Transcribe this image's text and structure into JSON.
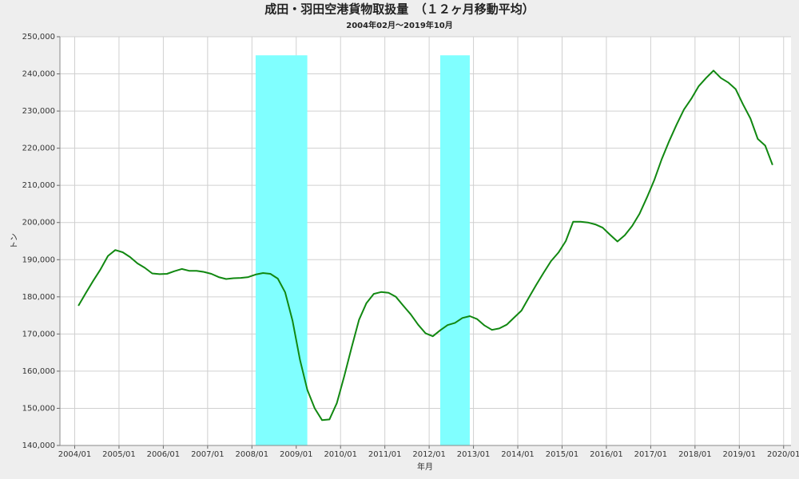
{
  "chart_data": {
    "type": "line",
    "title": "成田・羽田空港貨物取扱量　（１２ヶ月移動平均）",
    "subtitle": "2004年02月～2019年10月",
    "x_label": "年月",
    "y_label": "トン",
    "x": [
      "2004/02",
      "2004/04",
      "2004/06",
      "2004/08",
      "2004/10",
      "2004/12",
      "2005/02",
      "2005/04",
      "2005/06",
      "2005/08",
      "2005/10",
      "2005/12",
      "2006/02",
      "2006/04",
      "2006/06",
      "2006/08",
      "2006/10",
      "2006/12",
      "2007/02",
      "2007/04",
      "2007/06",
      "2007/08",
      "2007/10",
      "2007/12",
      "2008/02",
      "2008/04",
      "2008/06",
      "2008/08",
      "2008/10",
      "2008/12",
      "2009/02",
      "2009/04",
      "2009/06",
      "2009/08",
      "2009/10",
      "2009/12",
      "2010/02",
      "2010/04",
      "2010/06",
      "2010/08",
      "2010/10",
      "2010/12",
      "2011/02",
      "2011/04",
      "2011/06",
      "2011/08",
      "2011/10",
      "2011/12",
      "2012/02",
      "2012/04",
      "2012/06",
      "2012/08",
      "2012/10",
      "2012/12",
      "2013/02",
      "2013/04",
      "2013/06",
      "2013/08",
      "2013/10",
      "2013/12",
      "2014/02",
      "2014/04",
      "2014/06",
      "2014/08",
      "2014/10",
      "2014/12",
      "2015/02",
      "2015/04",
      "2015/06",
      "2015/08",
      "2015/10",
      "2015/12",
      "2016/02",
      "2016/04",
      "2016/06",
      "2016/08",
      "2016/10",
      "2016/12",
      "2017/02",
      "2017/04",
      "2017/06",
      "2017/08",
      "2017/10",
      "2017/12",
      "2018/02",
      "2018/04",
      "2018/06",
      "2018/08",
      "2018/10",
      "2018/12",
      "2019/02",
      "2019/04",
      "2019/06",
      "2019/08",
      "2019/10"
    ],
    "series": [
      {
        "color": "#118811",
        "values": [
          177600,
          181000,
          184300,
          187400,
          191000,
          192600,
          192000,
          190700,
          189000,
          187800,
          186300,
          186100,
          186200,
          186900,
          187500,
          187000,
          187000,
          186700,
          186200,
          185300,
          184800,
          185000,
          185100,
          185300,
          186000,
          186400,
          186200,
          184900,
          181200,
          173600,
          163100,
          155000,
          150000,
          146800,
          147000,
          151400,
          158600,
          166400,
          173800,
          178300,
          180800,
          181300,
          181100,
          180000,
          177600,
          175300,
          172500,
          170200,
          169400,
          171000,
          172400,
          173000,
          174300,
          174800,
          174000,
          172300,
          171100,
          171500,
          172500,
          174400,
          176300,
          179800,
          183200,
          186500,
          189600,
          191900,
          195000,
          200200,
          200200,
          200000,
          199500,
          198600,
          196700,
          194900,
          196600,
          199100,
          202400,
          206800,
          211500,
          217100,
          221900,
          226300,
          230400,
          233300,
          236700,
          238900,
          240900,
          238900,
          237700,
          235900,
          231800,
          228000,
          222500,
          220700,
          215500
        ]
      }
    ],
    "bands": [
      {
        "start": "2008/02",
        "end": "2009/04"
      },
      {
        "start": "2012/04",
        "end": "2012/12"
      }
    ],
    "band_top": 245000,
    "band_color": "#80ffff",
    "xlim": [
      "2003/09",
      "2020/03"
    ],
    "xticks": [
      "2004/01",
      "2005/01",
      "2006/01",
      "2007/01",
      "2008/01",
      "2009/01",
      "2010/01",
      "2011/01",
      "2012/01",
      "2013/01",
      "2014/01",
      "2015/01",
      "2016/01",
      "2017/01",
      "2018/01",
      "2019/01",
      "2020/01"
    ],
    "ylim": [
      140000,
      250000
    ],
    "yticks": [
      {
        "value": 140000,
        "label": "140,000"
      },
      {
        "value": 150000,
        "label": "150,000"
      },
      {
        "value": 160000,
        "label": "160,000"
      },
      {
        "value": 170000,
        "label": "170,000"
      },
      {
        "value": 180000,
        "label": "180,000"
      },
      {
        "value": 190000,
        "label": "190,000"
      },
      {
        "value": 200000,
        "label": "200,000"
      },
      {
        "value": 210000,
        "label": "210,000"
      },
      {
        "value": 220000,
        "label": "220,000"
      },
      {
        "value": 230000,
        "label": "230,000"
      },
      {
        "value": 240000,
        "label": "240,000"
      },
      {
        "value": 250000,
        "label": "250,000"
      }
    ],
    "grid": true
  }
}
